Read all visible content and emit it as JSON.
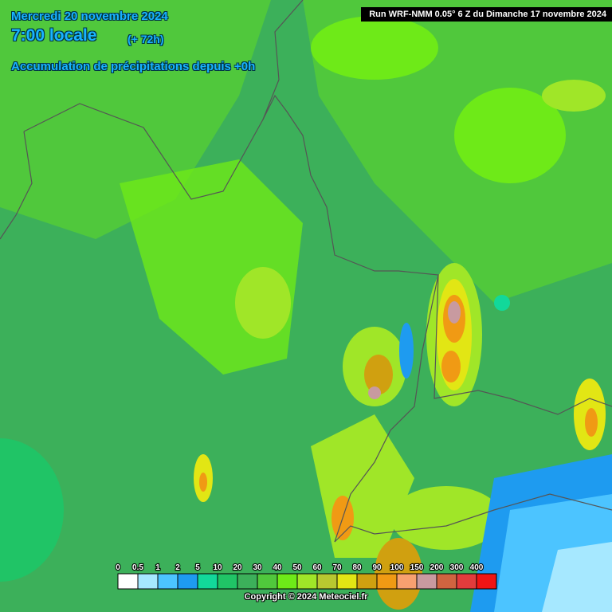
{
  "header": {
    "date": "Mercredi 20 novembre 2024",
    "time": "7:00 locale",
    "lead": "(+ 72h)",
    "product": "Accumulation de précipitations depuis +0h",
    "run": "Run WRF-NMM 0.05° 6 Z du Dimanche 17 novembre 2024"
  },
  "legend": {
    "items": [
      {
        "label": "0",
        "color": "#ffffff"
      },
      {
        "label": "0.5",
        "color": "#a6e8ff"
      },
      {
        "label": "1",
        "color": "#4cc4ff"
      },
      {
        "label": "2",
        "color": "#1e9bf0"
      },
      {
        "label": "5",
        "color": "#12d89a"
      },
      {
        "label": "10",
        "color": "#20c466"
      },
      {
        "label": "20",
        "color": "#3cb05a"
      },
      {
        "label": "30",
        "color": "#50c83c"
      },
      {
        "label": "40",
        "color": "#6eea18"
      },
      {
        "label": "50",
        "color": "#a0e628"
      },
      {
        "label": "60",
        "color": "#b8c830"
      },
      {
        "label": "70",
        "color": "#e2e614"
      },
      {
        "label": "80",
        "color": "#d0a010"
      },
      {
        "label": "90",
        "color": "#f09a14"
      },
      {
        "label": "100",
        "color": "#f8a070"
      },
      {
        "label": "150",
        "color": "#c89aa0"
      },
      {
        "label": "200",
        "color": "#d06440"
      },
      {
        "label": "300",
        "color": "#e23c3c"
      },
      {
        "label": "400",
        "color": "#f01414"
      }
    ]
  },
  "footer": {
    "copyright": "Copyright © 2024 Meteociel.fr"
  }
}
